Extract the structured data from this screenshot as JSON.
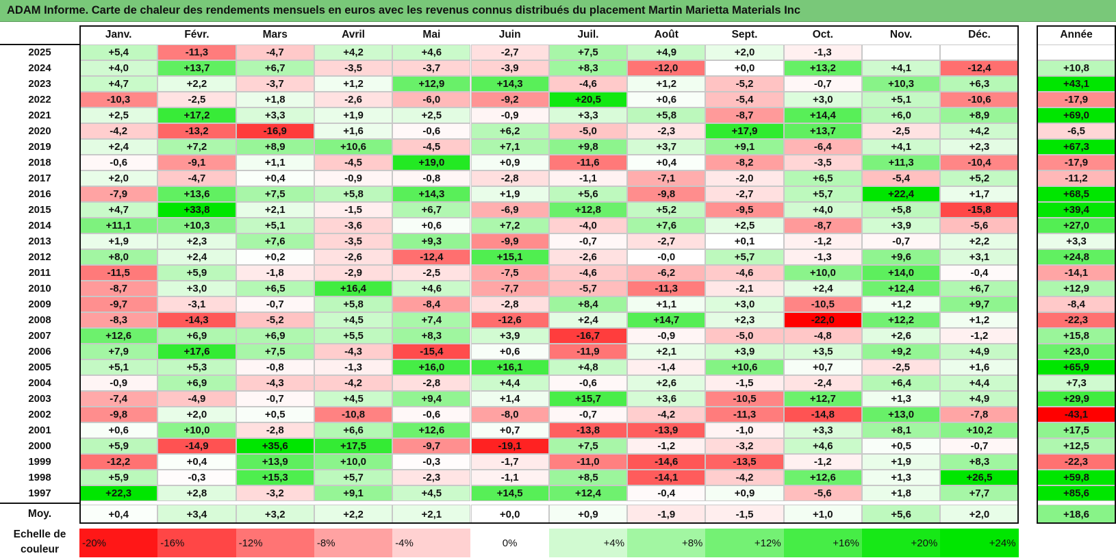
{
  "title": "ADAM Informe. Carte de chaleur des rendements mensuels en euros avec les revenus connus distribués du placement Martin Marietta Materials Inc",
  "chart_data": {
    "type": "heatmap",
    "title": "ADAM Informe. Carte de chaleur des rendements mensuels en euros avec les revenus connus distribués du placement Martin Marietta Materials Inc",
    "columns": [
      "Janv.",
      "Févr.",
      "Mars",
      "Avril",
      "Mai",
      "Juin",
      "Juil.",
      "Août",
      "Sept.",
      "Oct.",
      "Nov.",
      "Déc."
    ],
    "year_header": "Année",
    "rows": [
      {
        "year": "2025",
        "months": [
          "+5,4",
          "-11,3",
          "-4,7",
          "+4,2",
          "+4,6",
          "-2,7",
          "+7,5",
          "+4,9",
          "+2,0",
          "-1,3",
          "",
          ""
        ],
        "annual": ""
      },
      {
        "year": "2024",
        "months": [
          "+4,0",
          "+13,7",
          "+6,7",
          "-3,5",
          "-3,7",
          "-3,9",
          "+8,3",
          "-12,0",
          "+0,0",
          "+13,2",
          "+4,1",
          "-12,4"
        ],
        "annual": "+10,8"
      },
      {
        "year": "2023",
        "months": [
          "+4,7",
          "+2,2",
          "-3,7",
          "+1,2",
          "+12,9",
          "+14,3",
          "-4,6",
          "+1,2",
          "-5,2",
          "-0,7",
          "+10,3",
          "+6,3"
        ],
        "annual": "+43,1"
      },
      {
        "year": "2022",
        "months": [
          "-10,3",
          "-2,5",
          "+1,8",
          "-2,6",
          "-6,0",
          "-9,2",
          "+20,5",
          "+0,6",
          "-5,4",
          "+3,0",
          "+5,1",
          "-10,6"
        ],
        "annual": "-17,9"
      },
      {
        "year": "2021",
        "months": [
          "+2,5",
          "+17,2",
          "+3,3",
          "+1,9",
          "+2,5",
          "-0,9",
          "+3,3",
          "+5,8",
          "-8,7",
          "+14,4",
          "+6,0",
          "+8,9"
        ],
        "annual": "+69,0"
      },
      {
        "year": "2020",
        "months": [
          "-4,2",
          "-13,2",
          "-16,9",
          "+1,6",
          "-0,6",
          "+6,2",
          "-5,0",
          "-2,3",
          "+17,9",
          "+13,7",
          "-2,5",
          "+4,2"
        ],
        "annual": "-6,5"
      },
      {
        "year": "2019",
        "months": [
          "+2,4",
          "+7,2",
          "+8,9",
          "+10,6",
          "-4,5",
          "+7,1",
          "+9,8",
          "+3,7",
          "+9,1",
          "-6,4",
          "+4,1",
          "+2,3"
        ],
        "annual": "+67,3"
      },
      {
        "year": "2018",
        "months": [
          "-0,6",
          "-9,1",
          "+1,1",
          "-4,5",
          "+19,0",
          "+0,9",
          "-11,6",
          "+0,4",
          "-8,2",
          "-3,5",
          "+11,3",
          "-10,4"
        ],
        "annual": "-17,9"
      },
      {
        "year": "2017",
        "months": [
          "+2,0",
          "-4,7",
          "+0,4",
          "-0,9",
          "-0,8",
          "-2,8",
          "-1,1",
          "-7,1",
          "-2,0",
          "+6,5",
          "-5,4",
          "+5,2"
        ],
        "annual": "-11,2"
      },
      {
        "year": "2016",
        "months": [
          "-7,9",
          "+13,6",
          "+7,5",
          "+5,8",
          "+14,3",
          "+1,9",
          "+5,6",
          "-9,8",
          "-2,7",
          "+5,7",
          "+22,4",
          "+1,7"
        ],
        "annual": "+68,5"
      },
      {
        "year": "2015",
        "months": [
          "+4,7",
          "+33,8",
          "+2,1",
          "-1,5",
          "+6,7",
          "-6,9",
          "+12,8",
          "+5,2",
          "-9,5",
          "+4,0",
          "+5,8",
          "-15,8"
        ],
        "annual": "+39,4"
      },
      {
        "year": "2014",
        "months": [
          "+11,1",
          "+10,3",
          "+5,1",
          "-3,6",
          "+0,6",
          "+7,2",
          "-4,0",
          "+7,6",
          "+2,5",
          "-8,7",
          "+3,9",
          "-5,6"
        ],
        "annual": "+27,0"
      },
      {
        "year": "2013",
        "months": [
          "+1,9",
          "+2,3",
          "+7,6",
          "-3,5",
          "+9,3",
          "-9,9",
          "-0,7",
          "-2,7",
          "+0,1",
          "-1,2",
          "-0,7",
          "+2,2"
        ],
        "annual": "+3,3"
      },
      {
        "year": "2012",
        "months": [
          "+8,0",
          "+2,4",
          "+0,2",
          "-2,6",
          "-12,4",
          "+15,1",
          "-2,6",
          "-0,0",
          "+5,7",
          "-1,3",
          "+9,6",
          "+3,1"
        ],
        "annual": "+24,8"
      },
      {
        "year": "2011",
        "months": [
          "-11,5",
          "+5,9",
          "-1,8",
          "-2,9",
          "-2,5",
          "-7,5",
          "-4,6",
          "-6,2",
          "-4,6",
          "+10,0",
          "+14,0",
          "-0,4"
        ],
        "annual": "-14,1"
      },
      {
        "year": "2010",
        "months": [
          "-8,7",
          "+3,0",
          "+6,5",
          "+16,4",
          "+4,6",
          "-7,7",
          "-5,7",
          "-11,3",
          "-2,1",
          "+2,4",
          "+12,4",
          "+6,7"
        ],
        "annual": "+12,9"
      },
      {
        "year": "2009",
        "months": [
          "-9,7",
          "-3,1",
          "-0,7",
          "+5,8",
          "-8,4",
          "-2,8",
          "+8,4",
          "+1,1",
          "+3,0",
          "-10,5",
          "+1,2",
          "+9,7"
        ],
        "annual": "-8,4"
      },
      {
        "year": "2008",
        "months": [
          "-8,3",
          "-14,3",
          "-5,2",
          "+4,5",
          "+7,4",
          "-12,6",
          "+2,4",
          "+14,7",
          "+2,3",
          "-22,0",
          "+12,2",
          "+1,2"
        ],
        "annual": "-22,3"
      },
      {
        "year": "2007",
        "months": [
          "+12,6",
          "+6,9",
          "+6,9",
          "+5,5",
          "+8,3",
          "+3,9",
          "-16,7",
          "-0,9",
          "-5,0",
          "-4,8",
          "+2,6",
          "-1,2"
        ],
        "annual": "+15,8"
      },
      {
        "year": "2006",
        "months": [
          "+7,9",
          "+17,6",
          "+7,5",
          "-4,3",
          "-15,4",
          "+0,6",
          "-11,9",
          "+2,1",
          "+3,9",
          "+3,5",
          "+9,2",
          "+4,9"
        ],
        "annual": "+23,0"
      },
      {
        "year": "2005",
        "months": [
          "+5,1",
          "+5,3",
          "-0,8",
          "-1,3",
          "+16,0",
          "+16,1",
          "+4,8",
          "-1,4",
          "+10,6",
          "+0,7",
          "-2,5",
          "+1,6"
        ],
        "annual": "+65,9"
      },
      {
        "year": "2004",
        "months": [
          "-0,9",
          "+6,9",
          "-4,3",
          "-4,2",
          "-2,8",
          "+4,4",
          "-0,6",
          "+2,6",
          "-1,5",
          "-2,4",
          "+6,4",
          "+4,4"
        ],
        "annual": "+7,3"
      },
      {
        "year": "2003",
        "months": [
          "-7,4",
          "-4,9",
          "-0,7",
          "+4,5",
          "+9,4",
          "+1,4",
          "+15,7",
          "+3,6",
          "-10,5",
          "+12,7",
          "+1,3",
          "+4,9"
        ],
        "annual": "+29,9"
      },
      {
        "year": "2002",
        "months": [
          "-9,8",
          "+2,0",
          "+0,5",
          "-10,8",
          "-0,6",
          "-8,0",
          "-0,7",
          "-4,2",
          "-11,3",
          "-14,8",
          "+13,0",
          "-7,8"
        ],
        "annual": "-43,1"
      },
      {
        "year": "2001",
        "months": [
          "+0,6",
          "+10,0",
          "-2,8",
          "+6,6",
          "+12,6",
          "+0,7",
          "-13,8",
          "-13,9",
          "-1,0",
          "+3,3",
          "+8,1",
          "+10,2"
        ],
        "annual": "+17,5"
      },
      {
        "year": "2000",
        "months": [
          "+5,9",
          "-14,9",
          "+35,6",
          "+17,5",
          "-9,7",
          "-19,1",
          "+7,5",
          "-1,2",
          "-3,2",
          "+4,6",
          "+0,5",
          "-0,7"
        ],
        "annual": "+12,5"
      },
      {
        "year": "1999",
        "months": [
          "-12,2",
          "+0,4",
          "+13,9",
          "+10,0",
          "-0,3",
          "-1,7",
          "-11,0",
          "-14,6",
          "-13,5",
          "-1,2",
          "+1,9",
          "+8,3"
        ],
        "annual": "-22,3"
      },
      {
        "year": "1998",
        "months": [
          "+5,9",
          "-0,3",
          "+15,3",
          "+5,7",
          "-2,3",
          "-1,1",
          "+8,5",
          "-14,1",
          "-4,2",
          "+12,6",
          "+1,3",
          "+26,5"
        ],
        "annual": "+59,8"
      },
      {
        "year": "1997",
        "months": [
          "+22,3",
          "+2,8",
          "-3,2",
          "+9,1",
          "+4,5",
          "+14,5",
          "+12,4",
          "-0,4",
          "+0,9",
          "-5,6",
          "+1,8",
          "+7,7"
        ],
        "annual": "+85,6"
      }
    ],
    "average": {
      "label": "Moy.",
      "months": [
        "+0,4",
        "+3,4",
        "+3,2",
        "+2,2",
        "+2,1",
        "+0,0",
        "+0,9",
        "-1,9",
        "-1,5",
        "+1,0",
        "+5,6",
        "+2,0"
      ],
      "annual": "+18,6"
    },
    "scale": {
      "label": "Echelle de couleur",
      "steps": [
        "-20%",
        "-16%",
        "-12%",
        "-8%",
        "-4%",
        "0%",
        "+4%",
        "+8%",
        "+12%",
        "+16%",
        "+20%",
        "+24%"
      ]
    },
    "colors": {
      "negative": "#ff0000",
      "positive": "#00e000",
      "neutral": "#ffffff",
      "title_bar": "#79c879"
    }
  }
}
